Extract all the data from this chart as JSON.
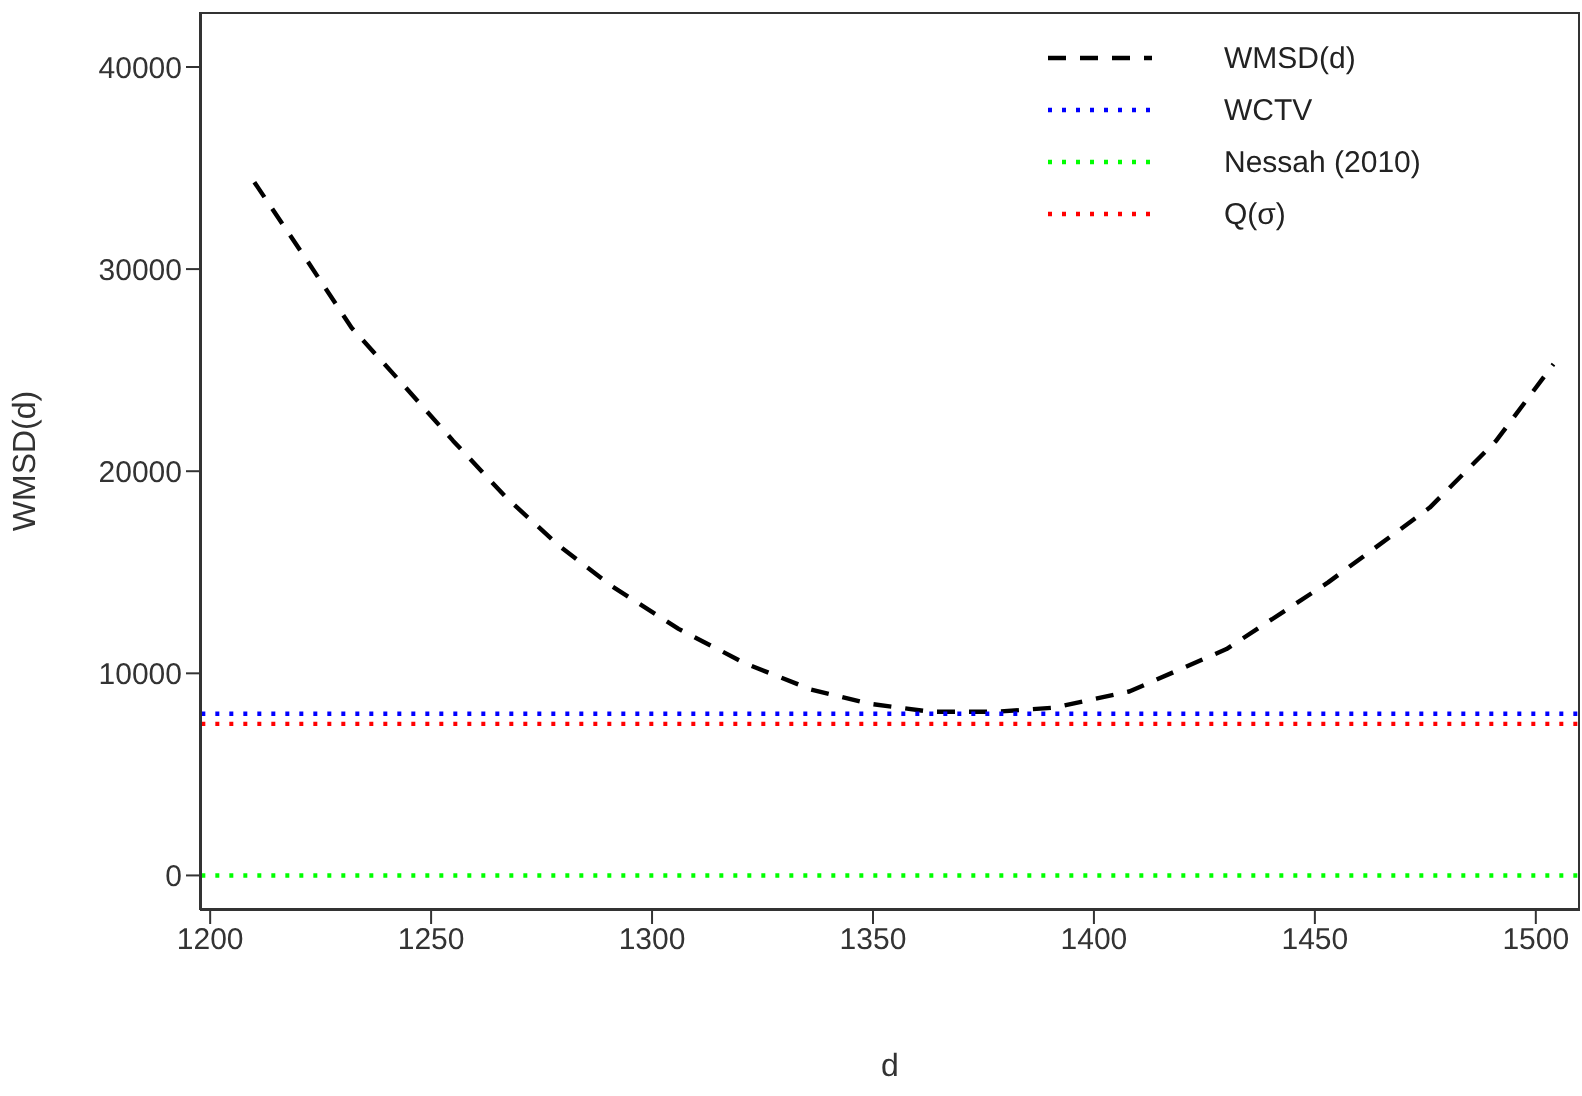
{
  "chart_data": {
    "type": "line",
    "xlabel": "d",
    "ylabel": "WMSD(d)",
    "xlim": [
      1197.7,
      1510
    ],
    "ylim": [
      -1710,
      42720
    ],
    "xticks": [
      1200,
      1250,
      1300,
      1350,
      1400,
      1450,
      1500
    ],
    "yticks": [
      0,
      10000,
      20000,
      30000,
      40000
    ],
    "grid": false,
    "legend": "top right",
    "marker": "none",
    "series": [
      {
        "name": "WMSD(d)",
        "color": "#000000",
        "line_style": "dashed",
        "x": [
          1210,
          1222,
          1232,
          1244,
          1255,
          1267,
          1279,
          1291,
          1306,
          1321,
          1336,
          1349,
          1363,
          1378,
          1391,
          1408,
          1430,
          1453,
          1476,
          1491,
          1504
        ],
        "values": [
          34300,
          30400,
          27100,
          24200,
          21500,
          18700,
          16300,
          14300,
          12200,
          10500,
          9200,
          8500,
          8100,
          8100,
          8300,
          9100,
          11200,
          14500,
          18200,
          21500,
          25300
        ]
      },
      {
        "name": "WCTV",
        "color": "#0000ff",
        "line_style": "dotted",
        "x": [
          1198,
          1510
        ],
        "values": [
          8000,
          8000
        ]
      },
      {
        "name": "Nessah (2010)",
        "color": "#00ff00",
        "line_style": "dotted",
        "x": [
          1198,
          1510
        ],
        "values": [
          0,
          0
        ]
      },
      {
        "name": "Q(σ)",
        "color": "#ff0000",
        "line_style": "dotted",
        "x": [
          1198,
          1510
        ],
        "values": [
          7500,
          7500
        ]
      }
    ]
  }
}
